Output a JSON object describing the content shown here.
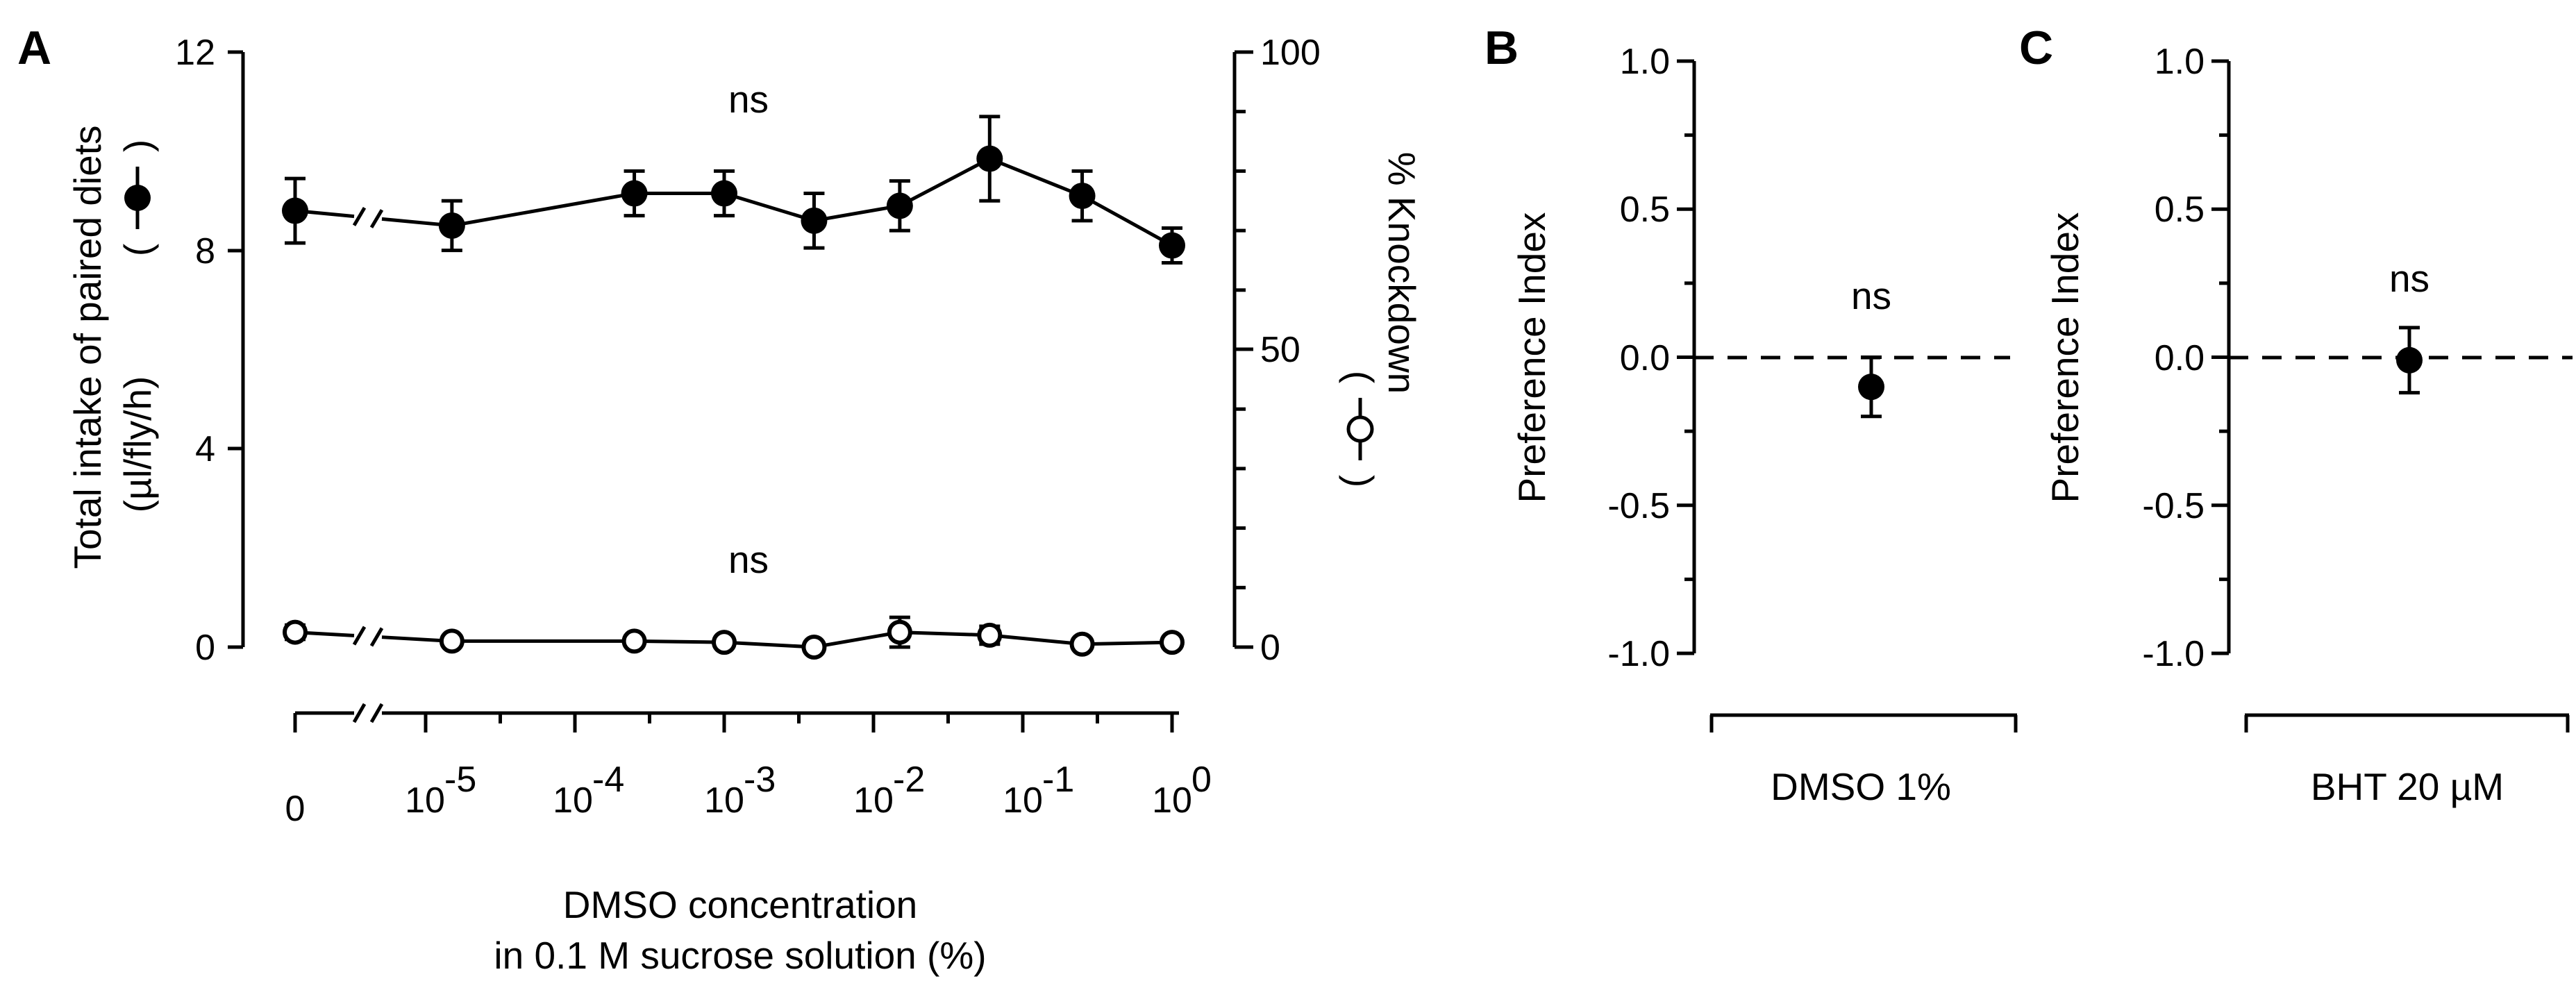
{
  "panels": {
    "a": {
      "letter": "A",
      "left_axis": {
        "title_line1": "Total intake of paired diets",
        "title_line2": "(µl/fly/h)",
        "ticks": [
          "0",
          "4",
          "8",
          "12"
        ],
        "ylim": [
          0,
          12
        ]
      },
      "right_axis": {
        "title_line1": "% Knockdown",
        "ticks": [
          "0",
          "50",
          "100"
        ],
        "ylim": [
          0,
          100
        ]
      },
      "x_axis": {
        "title_line1": "DMSO concentration",
        "title_line2": "in 0.1 M sucrose solution (%)",
        "tick_bases": [
          "0",
          "10",
          "10",
          "10",
          "10",
          "10",
          "10"
        ],
        "tick_exponents": [
          "",
          "-5",
          "-4",
          "-3",
          "-2",
          "-1",
          "0"
        ]
      },
      "ns_top": "ns",
      "ns_bottom": "ns"
    },
    "b": {
      "letter": "B",
      "ylabel": "Preference Index",
      "ticks": [
        "1.0",
        "0.5",
        "0.0",
        "-0.5",
        "-1.0"
      ],
      "xlabel": "DMSO 1%",
      "ns": "ns"
    },
    "c": {
      "letter": "C",
      "ylabel": "Preference Index",
      "ticks": [
        "1.0",
        "0.5",
        "0.0",
        "-0.5",
        "-1.0"
      ],
      "xlabel": "BHT 20 µM",
      "ns": "ns"
    }
  },
  "chart_data": [
    {
      "type": "line",
      "panel": "A",
      "x_scale": "log",
      "x": [
        0,
        1.5e-05,
        0.00025,
        0.001,
        0.004,
        0.015,
        0.06,
        0.25,
        1
      ],
      "xlabel": "DMSO concentration in 0.1 M sucrose solution (%)",
      "ylabel": "Total intake of paired diets (µl/fly/h)",
      "y2label": "% Knockdown",
      "ylim": [
        0,
        12
      ],
      "y2lim": [
        0,
        100
      ],
      "series": [
        {
          "marker": "filled",
          "axis": "left",
          "values": [
            8.8,
            8.5,
            9.15,
            9.15,
            8.6,
            8.9,
            9.85,
            9.1,
            8.1
          ],
          "errors": [
            0.65,
            0.5,
            0.45,
            0.45,
            0.55,
            0.5,
            0.85,
            0.5,
            0.35
          ]
        },
        {
          "marker": "open",
          "axis": "right",
          "values": [
            2.5,
            1.0,
            1.0,
            0.8,
            0.0,
            2.5,
            2.0,
            0.5,
            0.8
          ],
          "errors": [
            1.2,
            0.8,
            0.7,
            0.7,
            0.6,
            2.5,
            1.5,
            0.8,
            0.8
          ]
        }
      ],
      "annotations": [
        "ns",
        "ns"
      ]
    },
    {
      "type": "scatter",
      "panel": "B",
      "categories": [
        "DMSO 1%"
      ],
      "values": [
        -0.1
      ],
      "errors": [
        0.1
      ],
      "ylabel": "Preference Index",
      "ylim": [
        -1.0,
        1.0
      ],
      "reference_line": 0.0,
      "annotation": "ns"
    },
    {
      "type": "scatter",
      "panel": "C",
      "categories": [
        "BHT 20 µM"
      ],
      "values": [
        -0.01
      ],
      "errors": [
        0.11
      ],
      "ylabel": "Preference Index",
      "ylim": [
        -1.0,
        1.0
      ],
      "reference_line": 0.0,
      "annotation": "ns"
    }
  ]
}
